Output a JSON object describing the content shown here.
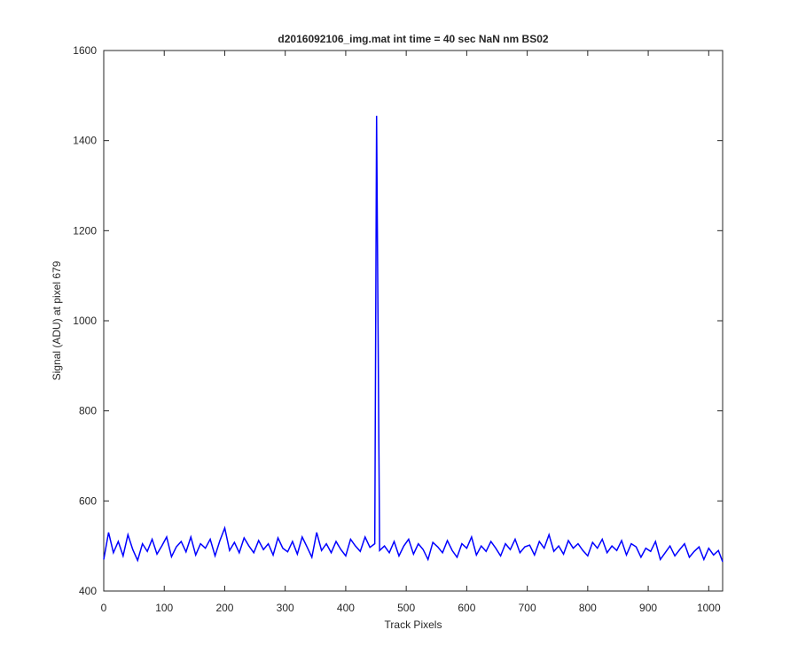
{
  "chart_data": {
    "type": "line",
    "title": "d2016092106_img.mat int time = 40 sec  NaN nm BS02",
    "xlabel": "Track Pixels",
    "ylabel": "Signal (ADU) at pixel 679",
    "x": [
      0,
      8,
      16,
      24,
      32,
      40,
      48,
      56,
      64,
      72,
      80,
      88,
      96,
      104,
      112,
      120,
      128,
      136,
      144,
      152,
      160,
      168,
      176,
      184,
      192,
      200,
      208,
      216,
      224,
      232,
      240,
      248,
      256,
      264,
      272,
      280,
      288,
      296,
      304,
      312,
      320,
      328,
      336,
      344,
      352,
      360,
      368,
      376,
      384,
      392,
      400,
      408,
      416,
      424,
      432,
      440,
      448,
      451,
      456,
      464,
      472,
      480,
      488,
      496,
      504,
      512,
      520,
      528,
      536,
      544,
      552,
      560,
      568,
      576,
      584,
      592,
      600,
      608,
      616,
      624,
      632,
      640,
      648,
      656,
      664,
      672,
      680,
      688,
      696,
      704,
      712,
      720,
      728,
      736,
      744,
      752,
      760,
      768,
      776,
      784,
      792,
      800,
      808,
      816,
      824,
      832,
      840,
      848,
      856,
      864,
      872,
      880,
      888,
      896,
      904,
      912,
      920,
      928,
      936,
      944,
      952,
      960,
      968,
      976,
      984,
      992,
      1000,
      1008,
      1016,
      1023
    ],
    "series": [
      {
        "color": "#0000ff",
        "values": [
          470,
          530,
          485,
          510,
          478,
          525,
          492,
          468,
          505,
          488,
          515,
          482,
          500,
          520,
          476,
          498,
          510,
          487,
          520,
          480,
          505,
          495,
          515,
          478,
          512,
          540,
          490,
          508,
          485,
          518,
          500,
          485,
          512,
          492,
          505,
          480,
          518,
          495,
          487,
          510,
          482,
          520,
          498,
          475,
          530,
          490,
          505,
          485,
          510,
          492,
          478,
          515,
          500,
          488,
          520,
          497,
          505,
          1455,
          490,
          500,
          485,
          510,
          478,
          500,
          515,
          482,
          505,
          492,
          470,
          508,
          498,
          485,
          512,
          490,
          475,
          505,
          495,
          520,
          480,
          500,
          488,
          510,
          495,
          478,
          505,
          492,
          515,
          485,
          498,
          502,
          480,
          510,
          495,
          525,
          488,
          500,
          482,
          512,
          495,
          505,
          490,
          478,
          508,
          495,
          515,
          485,
          500,
          490,
          512,
          480,
          505,
          498,
          475,
          495,
          488,
          510,
          470,
          485,
          500,
          478,
          492,
          505,
          475,
          488,
          498,
          470,
          495,
          480,
          490,
          465
        ]
      }
    ],
    "xlim": [
      0,
      1023
    ],
    "ylim": [
      400,
      1600
    ],
    "xticks": [
      0,
      100,
      200,
      300,
      400,
      500,
      600,
      700,
      800,
      900,
      1000
    ],
    "yticks": [
      400,
      600,
      800,
      1000,
      1200,
      1400,
      1600
    ]
  }
}
